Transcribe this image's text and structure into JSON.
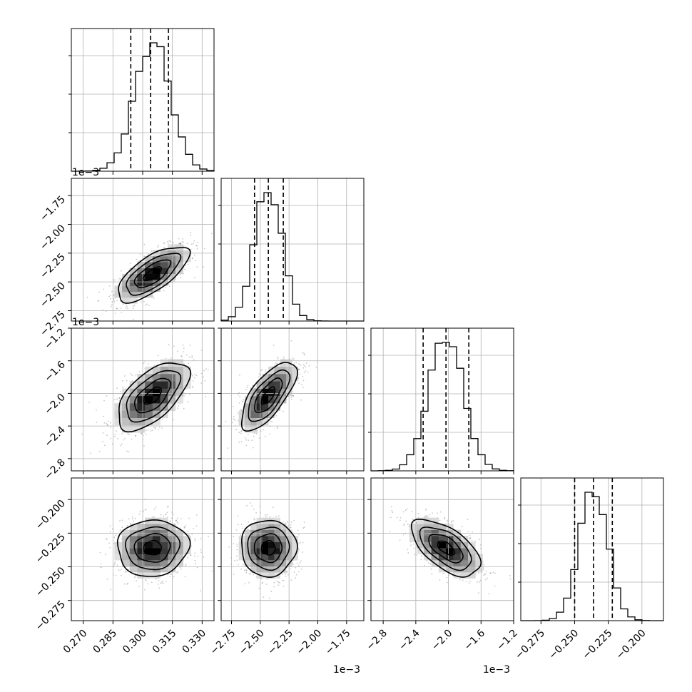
{
  "chart_data": {
    "type": "corner",
    "parameters": [
      {
        "label": "",
        "range": [
          0.264,
          0.336
        ],
        "ticks": [
          0.27,
          0.285,
          0.3,
          0.315,
          0.33
        ],
        "tick_labels": [
          "0.270",
          "0.285",
          "0.300",
          "0.315",
          "0.330"
        ],
        "offset": "",
        "mean": 0.305,
        "sd": 0.009,
        "quantiles": [
          0.294,
          0.304,
          0.313
        ]
      },
      {
        "label": "",
        "range": [
          -2.84,
          -1.6
        ],
        "ticks": [
          -2.75,
          -2.5,
          -2.25,
          -2.0,
          -1.75
        ],
        "tick_labels": [
          "−2.75",
          "−2.50",
          "−2.25",
          "−2.00",
          "−1.75"
        ],
        "offset": "1e−3",
        "mean": -2.43,
        "sd": 0.12,
        "quantiles": [
          -2.55,
          -2.43,
          -2.3
        ]
      },
      {
        "label": "",
        "range": [
          -2.95,
          -1.2
        ],
        "ticks": [
          -2.8,
          -2.4,
          -2.0,
          -1.6,
          -1.2
        ],
        "tick_labels": [
          "−2.8",
          "−2.4",
          "−2.0",
          "−1.6",
          "−1.2"
        ],
        "offset": "1e−3",
        "mean": -2.03,
        "sd": 0.21,
        "quantiles": [
          -2.31,
          -2.03,
          -1.75
        ]
      },
      {
        "label": "",
        "range": [
          -0.29,
          -0.184
        ],
        "ticks": [
          -0.275,
          -0.25,
          -0.225,
          -0.2
        ],
        "tick_labels": [
          "−0.275",
          "−0.250",
          "−0.225",
          "−0.200"
        ],
        "offset": "",
        "mean": -0.236,
        "sd": 0.0105,
        "quantiles": [
          -0.25,
          -0.236,
          -0.222
        ]
      }
    ],
    "correlations": {
      "1-0": 0.7,
      "2-0": 0.6,
      "2-1": 0.7,
      "3-0": 0.05,
      "3-1": 0.0,
      "3-2": -0.6
    },
    "contour_levels_sigma": [
      0.5,
      1.0,
      1.5,
      2.0
    ],
    "grid": true,
    "hist_bins": 20
  }
}
